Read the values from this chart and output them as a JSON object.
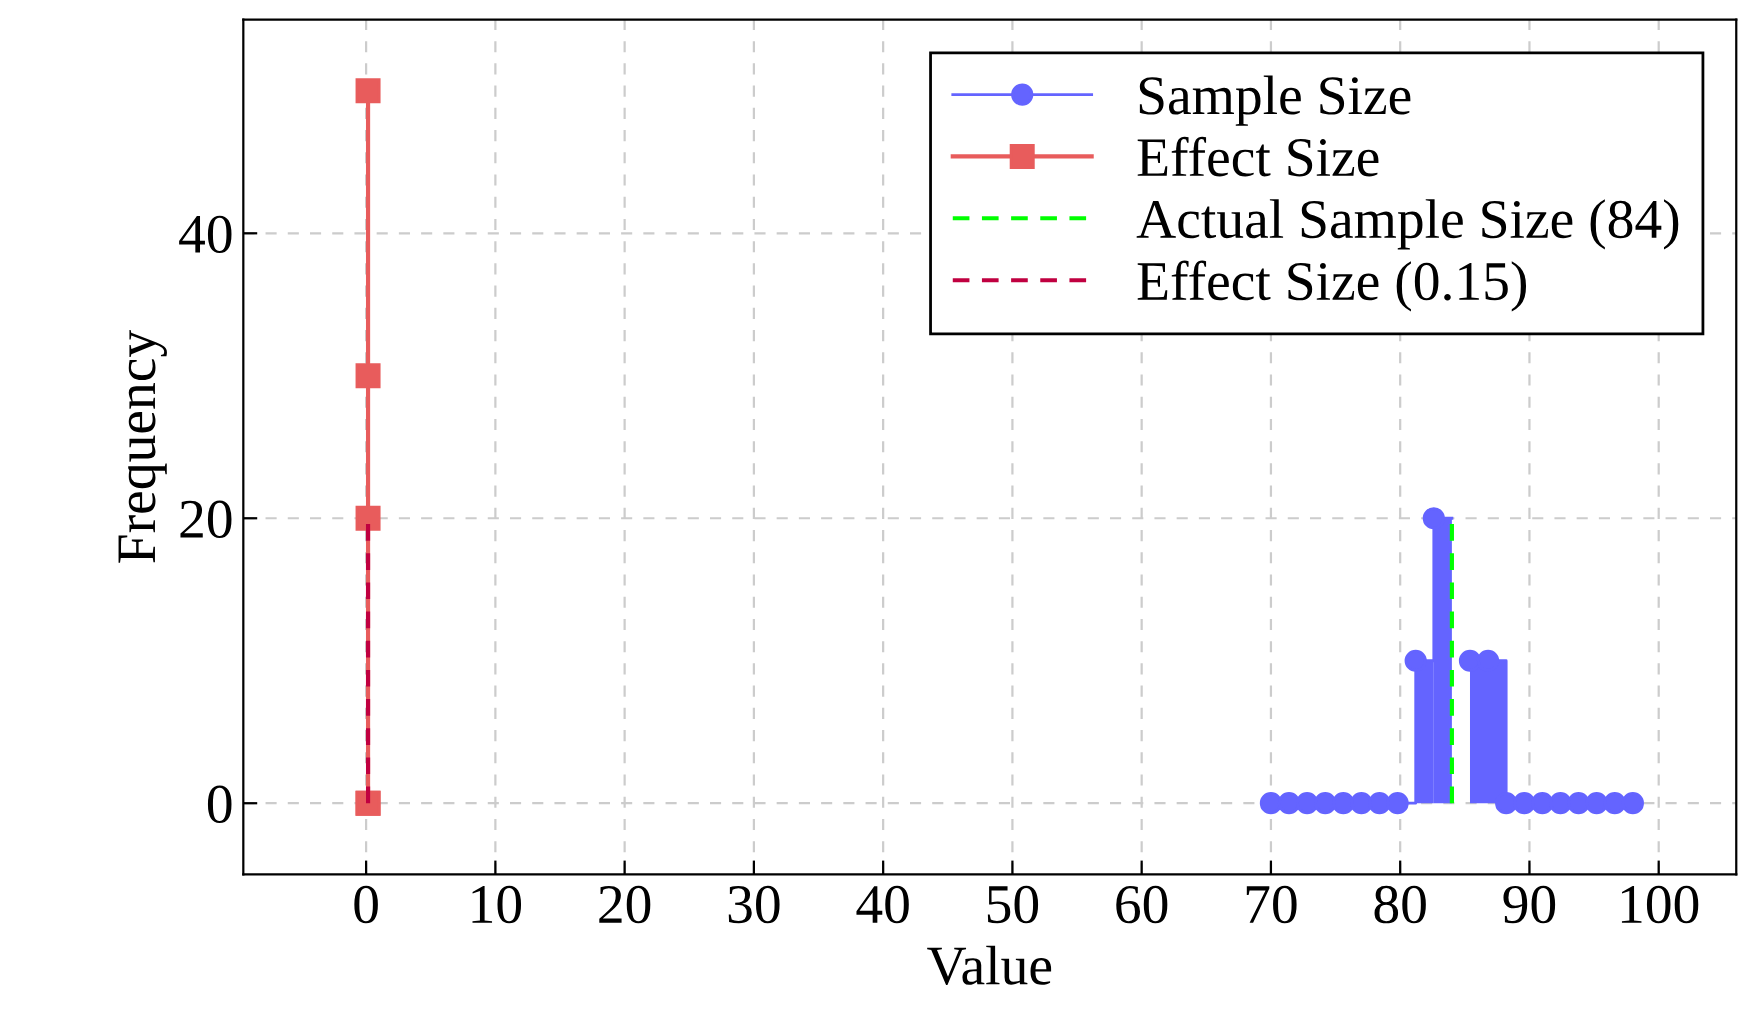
{
  "chart_data": {
    "type": "step",
    "xlabel": "Value",
    "ylabel": "Frequency",
    "xlim": [
      -9.5,
      106
    ],
    "ylim": [
      -5,
      55
    ],
    "xticks": [
      0,
      10,
      20,
      30,
      40,
      50,
      60,
      70,
      80,
      90,
      100
    ],
    "yticks": [
      0,
      20,
      40
    ],
    "grid": true,
    "legend": "top right",
    "series": [
      {
        "name": "Sample Size",
        "color": "#6464ff",
        "marker": "circle",
        "x": [
          70,
          71.4,
          72.8,
          74.2,
          75.6,
          77,
          78.4,
          79.8,
          81.2,
          82.6,
          84,
          85.4,
          86.8,
          88.2,
          89.6,
          91,
          92.4,
          93.8,
          95.2,
          96.6,
          98
        ],
        "values": [
          0,
          0,
          0,
          0,
          0,
          0,
          0,
          0,
          10,
          20,
          null,
          10,
          10,
          0,
          0,
          0,
          0,
          0,
          0,
          0,
          0
        ]
      },
      {
        "type": "histogram",
        "color": "#6464ff",
        "bins": [
          81.2,
          82.6,
          84,
          85.4,
          88.2
        ],
        "values": [
          10,
          20,
          null,
          10
        ]
      },
      {
        "name": "Effect Size",
        "type": "line",
        "color": "#e85c5c",
        "marker": "square",
        "x": [
          0.15,
          0.15,
          0.15,
          0.15,
          0.15
        ],
        "values": [
          0,
          0,
          20,
          30,
          50
        ]
      },
      {
        "name": "Actual Sample Size (84)",
        "type": "line",
        "color": "#00ff00",
        "line_style": "dashed",
        "marker": "none",
        "x": [
          84,
          84
        ],
        "values": [
          0,
          20
        ]
      },
      {
        "name": "Effect Size (0.15)",
        "type": "line",
        "color": "#c00040",
        "line_style": "dashed",
        "marker": "none",
        "x": [
          0.15,
          0.15
        ],
        "values": [
          0,
          20
        ]
      }
    ]
  }
}
